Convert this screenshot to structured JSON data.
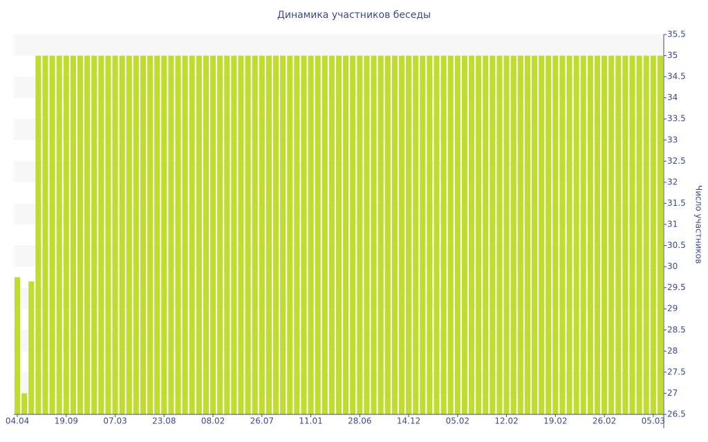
{
  "chart_data": {
    "type": "bar",
    "title": "Динамика участников беседы",
    "y_axis_label": "Число участников",
    "categories": [
      "04.04",
      null,
      null,
      null,
      null,
      null,
      null,
      "19.09",
      null,
      null,
      null,
      null,
      null,
      null,
      "07.03",
      null,
      null,
      null,
      null,
      null,
      null,
      "23.08",
      null,
      null,
      null,
      null,
      null,
      null,
      "08.02",
      null,
      null,
      null,
      null,
      null,
      null,
      "26.07",
      null,
      null,
      null,
      null,
      null,
      null,
      "11.01",
      null,
      null,
      null,
      null,
      null,
      null,
      "28.06",
      null,
      null,
      null,
      null,
      null,
      null,
      "14.12",
      null,
      null,
      null,
      null,
      null,
      null,
      "05.02",
      null,
      null,
      null,
      null,
      null,
      null,
      "12.02",
      null,
      null,
      null,
      null,
      null,
      null,
      "19.02",
      null,
      null,
      null,
      null,
      null,
      null,
      "26.02",
      null,
      null,
      null,
      null,
      null,
      null,
      "05.03",
      null
    ],
    "values": [
      29.75,
      27,
      29.65,
      35,
      35,
      35,
      35,
      35,
      35,
      35,
      35,
      35,
      35,
      35,
      35,
      35,
      35,
      35,
      35,
      35,
      35,
      35,
      35,
      35,
      35,
      35,
      35,
      35,
      35,
      35,
      35,
      35,
      35,
      35,
      35,
      35,
      35,
      35,
      35,
      35,
      35,
      35,
      35,
      35,
      35,
      35,
      35,
      35,
      35,
      35,
      35,
      35,
      35,
      35,
      35,
      35,
      35,
      35,
      35,
      35,
      35,
      35,
      35,
      35,
      35,
      35,
      35,
      35,
      35,
      35,
      35,
      35,
      35,
      35,
      35,
      35,
      35,
      35,
      35,
      35,
      35,
      35,
      35,
      35,
      35,
      35,
      35,
      35,
      35,
      35,
      35,
      35,
      35
    ],
    "color": "#c0dd2f",
    "ylim": [
      26.5,
      35.5
    ],
    "yticks": [
      26.5,
      27,
      27.5,
      28,
      28.5,
      29,
      29.5,
      30,
      30.5,
      31,
      31.5,
      32,
      32.5,
      33,
      33.5,
      34,
      34.5,
      35,
      35.5
    ],
    "grid": true,
    "y_axis_side": "right"
  }
}
